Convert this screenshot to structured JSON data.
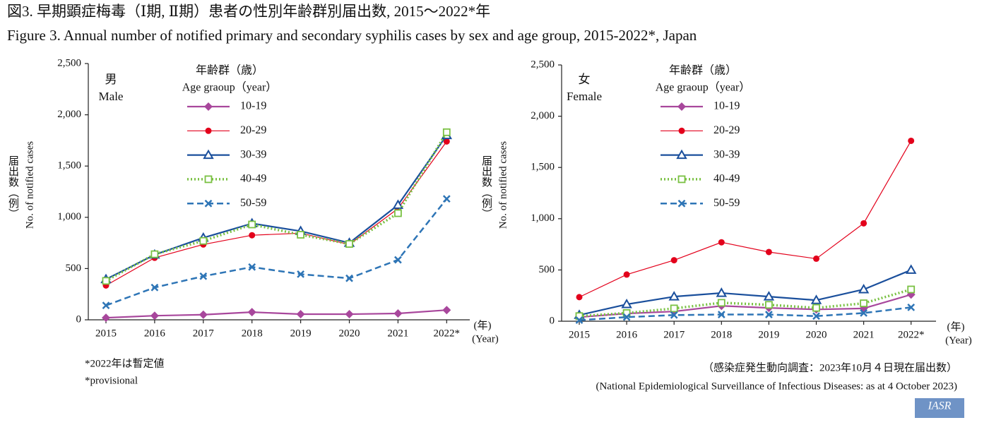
{
  "figure_title": "図3. 早期顕症梅毒（Ⅰ期, Ⅱ期）患者の性別年齢群別届出数, 2015〜2022*年",
  "figure_title_en": "Figure 3. Annual number of notified primary and secondary syphilis cases by sex and age group, 2015-2022*, Japan",
  "notes": [
    "*2022年は暫定値",
    "*provisional"
  ],
  "source": "（感染症発生動向調査：2023年10月４日現在届出数）",
  "source_en": "(National Epidemiological Surveillance of Infectious Diseases: as at 4 October 2023)",
  "logo": "IASR",
  "chart_data": [
    {
      "type": "line",
      "panel_label": "男",
      "panel_label_en": "Male",
      "legend_title": "年齢群（歳）",
      "legend_title_en": "Age graoup（year）",
      "y_label_ja": "届出数（例）",
      "y_label": "No. of notified cases",
      "x_label": "(年)",
      "x_label_en": "(Year)",
      "categories": [
        "2015",
        "2016",
        "2017",
        "2018",
        "2019",
        "2020",
        "2021",
        "2022*"
      ],
      "ylim": [
        0,
        2500
      ],
      "yticks": [
        0,
        500,
        {
          "value": 1000,
          "label": "1,000"
        },
        {
          "value": 1500,
          "label": "1,500"
        },
        {
          "value": 2000,
          "label": "2,000"
        },
        {
          "value": 2500,
          "label": "2,500"
        }
      ],
      "series": [
        {
          "name": "10-19",
          "color": "#a8479c",
          "marker": "diamond",
          "line_style": "solid",
          "values": [
            20,
            40,
            50,
            75,
            55,
            55,
            62,
            95
          ]
        },
        {
          "name": "20-29",
          "color": "#e3001b",
          "marker": "circle",
          "line_style": "thin",
          "values": [
            335,
            605,
            735,
            825,
            845,
            735,
            1085,
            1740
          ]
        },
        {
          "name": "30-39",
          "color": "#1a4f9c",
          "marker": "triangle",
          "line_style": "solid",
          "values": [
            395,
            635,
            800,
            940,
            865,
            750,
            1120,
            1800
          ]
        },
        {
          "name": "40-49",
          "color": "#7ac143",
          "marker": "square",
          "line_style": "dotted",
          "values": [
            380,
            640,
            770,
            930,
            830,
            740,
            1040,
            1830
          ]
        },
        {
          "name": "50-59",
          "color": "#2e75b6",
          "marker": "cross",
          "line_style": "dashed",
          "values": [
            140,
            315,
            425,
            515,
            445,
            405,
            585,
            1180
          ]
        }
      ]
    },
    {
      "type": "line",
      "panel_label": "女",
      "panel_label_en": "Female",
      "legend_title": "年齢群（歳）",
      "legend_title_en": "Age graoup（year）",
      "y_label_ja": "届出数（例）",
      "y_label": "No. of notified cases",
      "x_label": "(年)",
      "x_label_en": "(Year)",
      "categories": [
        "2015",
        "2016",
        "2017",
        "2018",
        "2019",
        "2020",
        "2021",
        "2022*"
      ],
      "ylim": [
        0,
        2500
      ],
      "yticks": [
        0,
        500,
        {
          "value": 1000,
          "label": "1,000"
        },
        {
          "value": 1500,
          "label": "1,500"
        },
        {
          "value": 2000,
          "label": "2,000"
        },
        {
          "value": 2500,
          "label": "2,500"
        }
      ],
      "series": [
        {
          "name": "10-19",
          "color": "#a8479c",
          "marker": "diamond",
          "line_style": "solid",
          "values": [
            40,
            75,
            95,
            150,
            130,
            115,
            125,
            260
          ]
        },
        {
          "name": "20-29",
          "color": "#e3001b",
          "marker": "circle",
          "line_style": "thin",
          "values": [
            235,
            455,
            595,
            770,
            675,
            610,
            955,
            1760
          ]
        },
        {
          "name": "30-39",
          "color": "#1a4f9c",
          "marker": "triangle",
          "line_style": "solid",
          "values": [
            60,
            165,
            240,
            275,
            240,
            205,
            310,
            500
          ]
        },
        {
          "name": "40-49",
          "color": "#7ac143",
          "marker": "square",
          "line_style": "dotted",
          "values": [
            50,
            80,
            125,
            180,
            160,
            130,
            175,
            310
          ]
        },
        {
          "name": "50-59",
          "color": "#2e75b6",
          "marker": "cross",
          "line_style": "dashed",
          "values": [
            10,
            40,
            60,
            65,
            65,
            50,
            80,
            135
          ]
        }
      ]
    }
  ]
}
